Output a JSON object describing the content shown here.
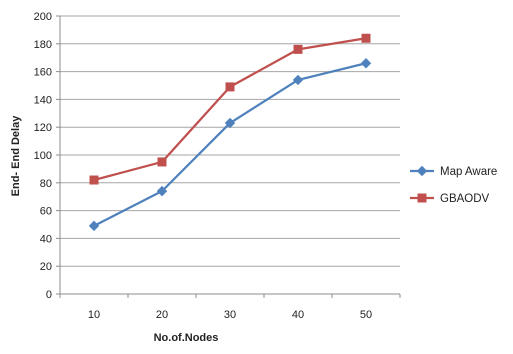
{
  "chart_data": {
    "type": "line",
    "xlabel": "No.of.Nodes",
    "ylabel": "End- End Delay",
    "categories": [
      "10",
      "20",
      "30",
      "40",
      "50"
    ],
    "ylim": [
      0,
      200
    ],
    "yticks": [
      0,
      20,
      40,
      60,
      80,
      100,
      120,
      140,
      160,
      180,
      200
    ],
    "grid": "horizontal",
    "legend_position": "right",
    "series": [
      {
        "name": "Map Aware",
        "color": "#4F81BD",
        "marker": "diamond",
        "values": [
          49,
          74,
          123,
          154,
          166
        ]
      },
      {
        "name": "GBAODV",
        "color": "#C0504D",
        "marker": "square",
        "values": [
          82,
          95,
          149,
          176,
          184
        ]
      }
    ]
  }
}
